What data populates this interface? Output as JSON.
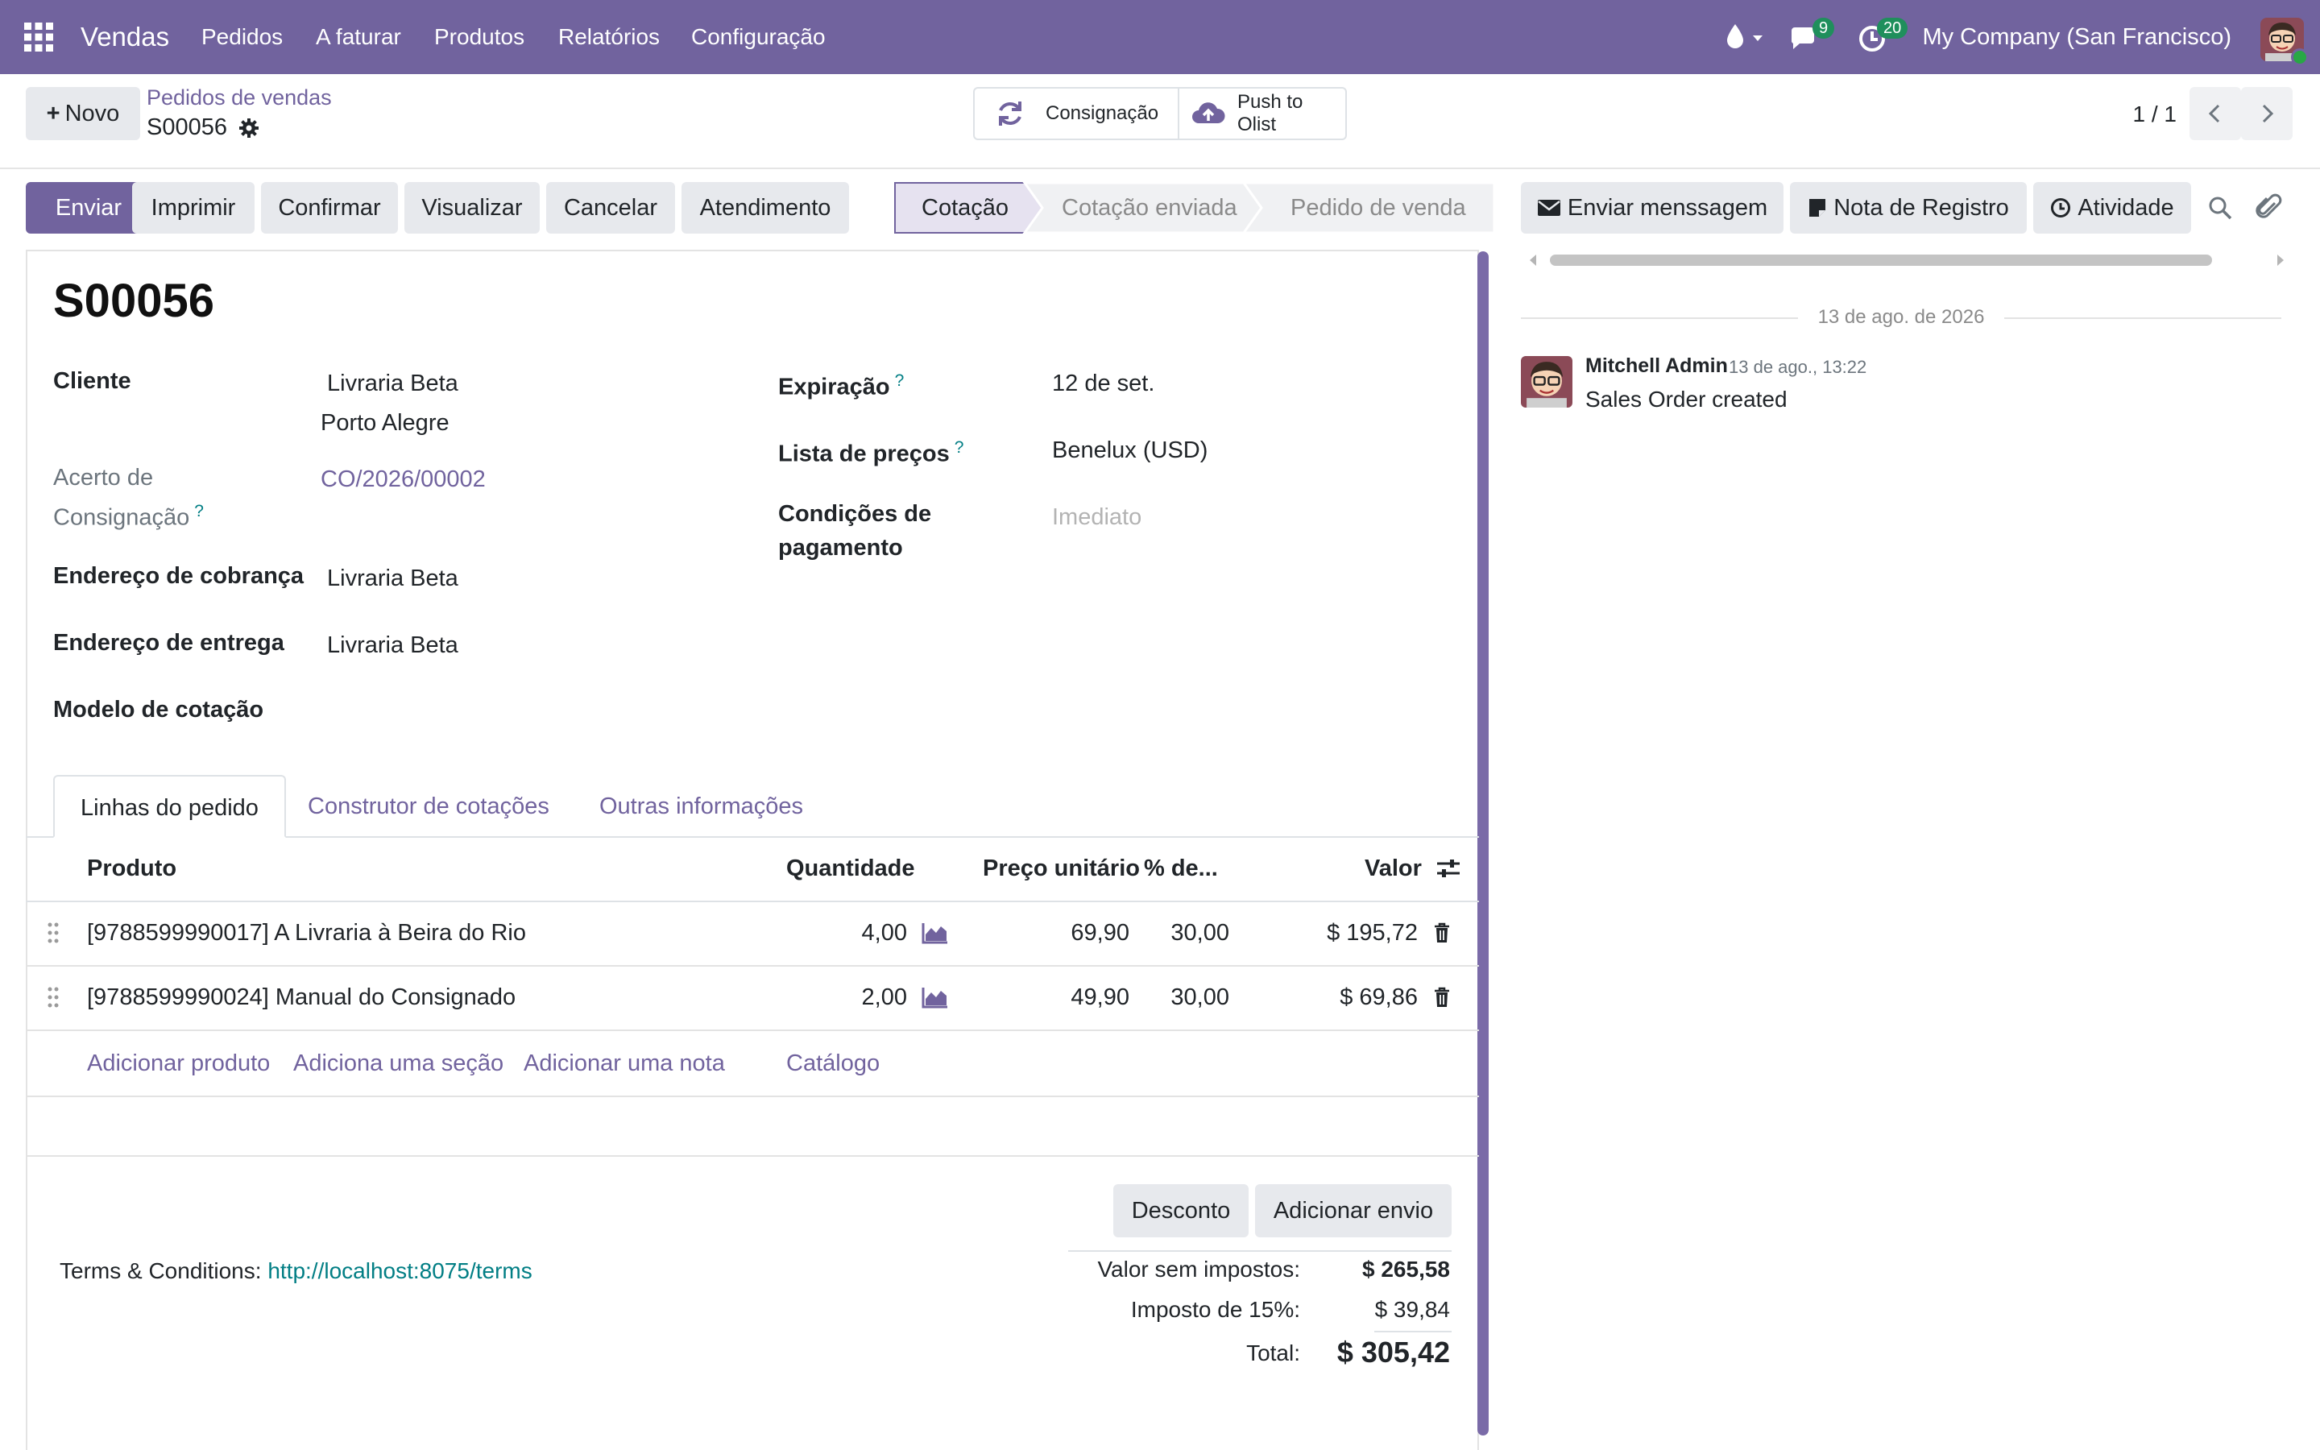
{
  "navbar": {
    "app_name": "Vendas",
    "menu": [
      "Pedidos",
      "A faturar",
      "Produtos",
      "Relatórios",
      "Configuração"
    ],
    "messages_count": "9",
    "activities_count": "20",
    "company": "My Company (San Francisco)"
  },
  "control_panel": {
    "new_label": "Novo",
    "breadcrumb_parent": "Pedidos de vendas",
    "breadcrumb_current": "S00056",
    "actions": {
      "consignment": "Consignação",
      "push_line1": "Push to",
      "push_line2": "Olist"
    },
    "pager": "1 / 1"
  },
  "statusbar": {
    "buttons": [
      "Enviar",
      "Imprimir",
      "Confirmar",
      "Visualizar",
      "Cancelar",
      "Atendimento"
    ],
    "stages": [
      "Cotação",
      "Cotação enviada",
      "Pedido de venda"
    ],
    "active_stage": "Cotação"
  },
  "form": {
    "title": "S00056",
    "left": {
      "cliente_label": "Cliente",
      "cliente_name": "Livraria Beta",
      "cliente_city": "Porto Alegre",
      "acerto_label_1": "Acerto de",
      "acerto_label_2": "Consignação",
      "acerto_value": "CO/2026/00002",
      "cobranca_label": "Endereço de cobrança",
      "cobranca_value": "Livraria Beta",
      "entrega_label": "Endereço de entrega",
      "entrega_value": "Livraria Beta",
      "modelo_label": "Modelo de cotação"
    },
    "right": {
      "expiracao_label": "Expiração",
      "expiracao_value": "12 de set.",
      "lista_label": "Lista de preços",
      "lista_value": "Benelux (USD)",
      "condicoes_label_1": "Condições de",
      "condicoes_label_2": "pagamento",
      "condicoes_placeholder": "Imediato"
    },
    "help_mark": "?"
  },
  "tabs": [
    "Linhas do pedido",
    "Construtor de cotações",
    "Outras informações"
  ],
  "order_lines": {
    "headers": {
      "product": "Produto",
      "qty": "Quantidade",
      "price": "Preço unitário",
      "discount": "% de...",
      "amount": "Valor"
    },
    "rows": [
      {
        "product": "[9788599990017] A Livraria à Beira do Rio",
        "qty": "4,00",
        "price": "69,90",
        "discount": "30,00",
        "amount": "$ 195,72"
      },
      {
        "product": "[9788599990024] Manual do Consignado",
        "qty": "2,00",
        "price": "49,90",
        "discount": "30,00",
        "amount": "$ 69,86"
      }
    ],
    "add_links": [
      "Adicionar produto",
      "Adiciona uma seção",
      "Adicionar uma nota",
      "Catálogo"
    ]
  },
  "footer": {
    "discount_btn": "Desconto",
    "shipping_btn": "Adicionar envio",
    "terms_label": "Terms & Conditions:",
    "terms_link": "http://localhost:8075/terms",
    "untaxed_label": "Valor sem impostos:",
    "untaxed_value": "$ 265,58",
    "tax_label": "Imposto de 15%:",
    "tax_value": "$ 39,84",
    "total_label": "Total:",
    "total_value": "$ 305,42"
  },
  "chatter": {
    "send_message": "Enviar menssagem",
    "log_note": "Nota de Registro",
    "activity": "Atividade",
    "date_separator": "13 de ago. de 2026",
    "messages": [
      {
        "author": "Mitchell Admin",
        "date": "13 de ago., 13:22",
        "body": "Sales Order created"
      }
    ]
  },
  "colors": {
    "brand": "#71639e",
    "link_teal": "#017e84",
    "badge_green": "#1f8f5c"
  }
}
